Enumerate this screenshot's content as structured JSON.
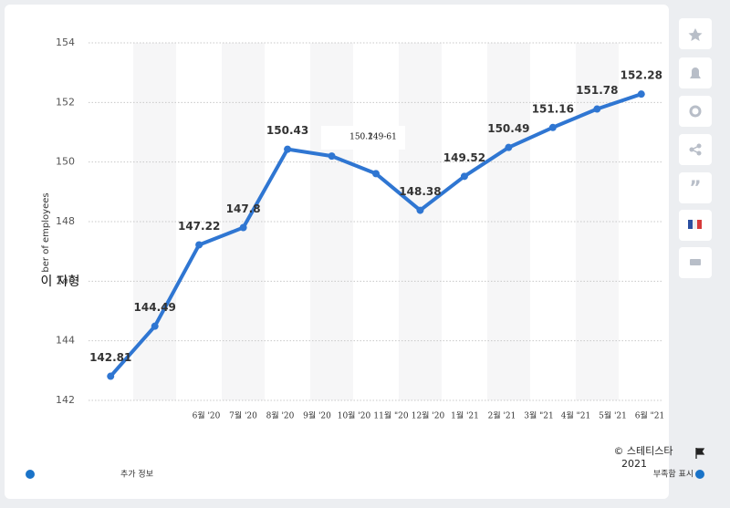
{
  "chart_data": {
    "type": "line",
    "categories": [
      "6월 '20",
      "7월 '20",
      "8월 '20",
      "9월 '20",
      "10월 '20",
      "11월 \"20",
      "12월 '20",
      "1월 '21",
      "2월 '21",
      "3월 \"21",
      "4월 \"21",
      "5월 '21",
      "6월 \"21"
    ],
    "values": [
      142.81,
      144.49,
      147.22,
      147.8,
      150.43,
      150.2,
      149.61,
      148.38,
      149.52,
      150.49,
      151.16,
      151.78,
      152.28
    ],
    "value_labels": [
      "142.81",
      "144.49",
      "147.22",
      "147.8",
      "150.43",
      "150.2",
      "149-61",
      "148.38",
      "149.52",
      "150.49",
      "151.16",
      "151.78",
      "152.28"
    ],
    "color": "#2f76d2",
    "ylim": [
      142,
      154
    ],
    "yticks": [
      142,
      144,
      146,
      148,
      150,
      152,
      154
    ],
    "grid": true,
    "ylabel": "ber of employees",
    "annotation": "이 자형",
    "footer": {
      "copyright": "© 스테티스타",
      "year": "2021",
      "more_info": "추가 정보",
      "report": "부족함 표시"
    }
  }
}
